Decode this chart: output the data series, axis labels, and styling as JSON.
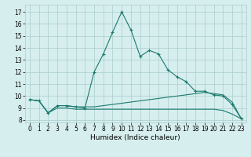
{
  "xlabel": "Humidex (Indice chaleur)",
  "xlim": [
    -0.5,
    23.5
  ],
  "ylim": [
    7.8,
    17.6
  ],
  "yticks": [
    8,
    9,
    10,
    11,
    12,
    13,
    14,
    15,
    16,
    17
  ],
  "xticks": [
    0,
    1,
    2,
    3,
    4,
    5,
    6,
    7,
    8,
    9,
    10,
    11,
    12,
    13,
    14,
    15,
    16,
    17,
    18,
    19,
    20,
    21,
    22,
    23
  ],
  "bg_color": "#d6eeee",
  "grid_color": "#aacccc",
  "line_color": "#1a7a6e",
  "line1": [
    9.7,
    9.6,
    8.6,
    9.2,
    9.2,
    9.1,
    9.0,
    12.0,
    13.5,
    15.3,
    17.0,
    15.5,
    13.3,
    13.8,
    13.5,
    12.2,
    11.6,
    11.2,
    10.4,
    10.4,
    10.1,
    10.0,
    9.3,
    8.1
  ],
  "line2": [
    9.7,
    9.6,
    8.6,
    9.2,
    9.2,
    9.1,
    9.1,
    9.1,
    9.2,
    9.3,
    9.4,
    9.5,
    9.6,
    9.7,
    9.8,
    9.9,
    10.0,
    10.1,
    10.2,
    10.3,
    10.2,
    10.1,
    9.5,
    8.1
  ],
  "line3": [
    9.7,
    9.6,
    8.6,
    9.0,
    9.0,
    8.9,
    8.9,
    8.9,
    8.9,
    8.9,
    8.9,
    8.9,
    8.9,
    8.9,
    8.9,
    8.9,
    8.9,
    8.9,
    8.9,
    8.9,
    8.9,
    8.8,
    8.5,
    8.1
  ],
  "tick_fontsize": 5.5,
  "xlabel_fontsize": 6.5,
  "linewidth": 0.8,
  "markersize": 3.5
}
